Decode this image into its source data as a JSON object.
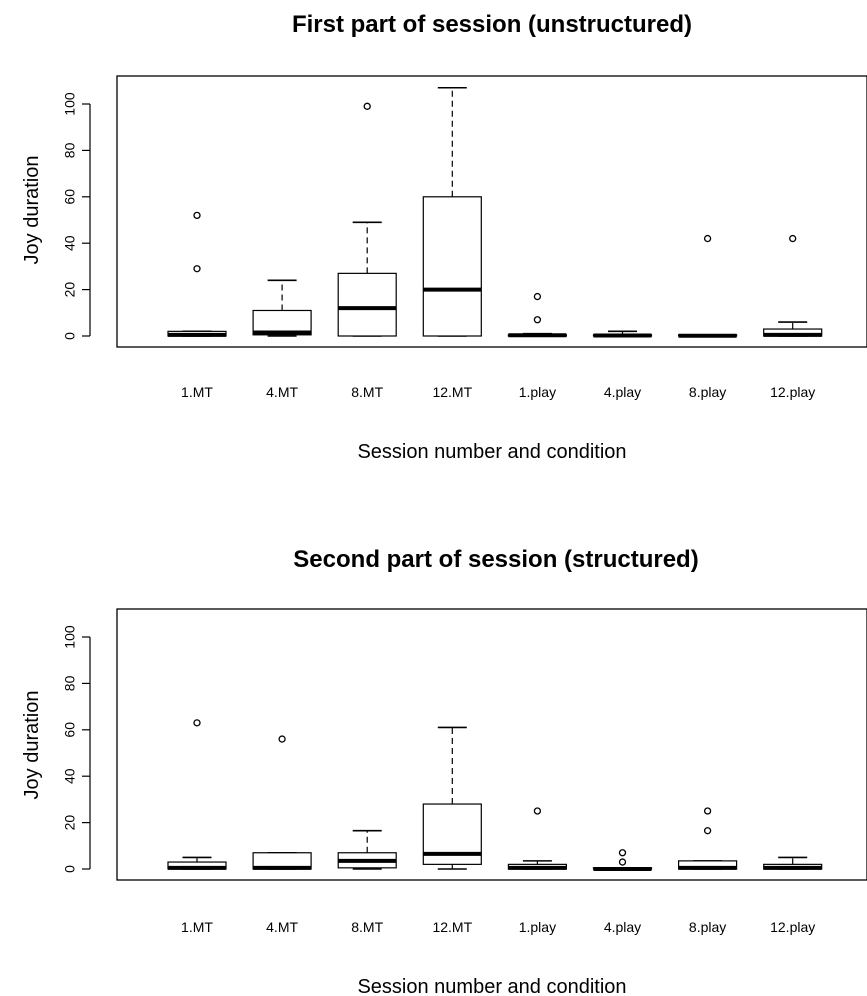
{
  "chart_data": [
    {
      "type": "boxplot",
      "title": "First part of session (unstructured)",
      "xlabel": "Session number and condition",
      "ylabel": "Joy duration",
      "ylim": [
        0,
        105
      ],
      "yticks": [
        0,
        20,
        40,
        60,
        80,
        100
      ],
      "grid": false,
      "categories": [
        "1.MT",
        "4.MT",
        "8.MT",
        "12.MT",
        "1.play",
        "4.play",
        "8.play",
        "12.play"
      ],
      "boxes": [
        {
          "whisker_low": 0,
          "q1": 0,
          "median": 0.5,
          "q3": 2,
          "whisker_high": 2,
          "outliers": [
            29,
            52
          ]
        },
        {
          "whisker_low": 0,
          "q1": 0.5,
          "median": 1.5,
          "q3": 11,
          "whisker_high": 24,
          "outliers": []
        },
        {
          "whisker_low": 0,
          "q1": 0,
          "median": 12,
          "q3": 27,
          "whisker_high": 49,
          "outliers": [
            99
          ]
        },
        {
          "whisker_low": 0,
          "q1": 0,
          "median": 20,
          "q3": 60,
          "whisker_high": 107,
          "outliers": []
        },
        {
          "whisker_low": 0,
          "q1": 0,
          "median": 0.3,
          "q3": 0.5,
          "whisker_high": 1,
          "outliers": [
            7,
            17
          ]
        },
        {
          "whisker_low": 0,
          "q1": 0,
          "median": 0.2,
          "q3": 0.5,
          "whisker_high": 2,
          "outliers": []
        },
        {
          "whisker_low": 0,
          "q1": 0,
          "median": 0.1,
          "q3": 0.5,
          "whisker_high": 0.5,
          "outliers": [
            42
          ]
        },
        {
          "whisker_low": 0,
          "q1": 0,
          "median": 0.5,
          "q3": 3,
          "whisker_high": 6,
          "outliers": [
            42
          ]
        }
      ]
    },
    {
      "type": "boxplot",
      "title": "Second part of session (structured)",
      "xlabel": "Session number and condition",
      "ylabel": "Joy duration",
      "ylim": [
        0,
        105
      ],
      "yticks": [
        0,
        20,
        40,
        60,
        80,
        100
      ],
      "grid": false,
      "categories": [
        "1.MT",
        "4.MT",
        "8.MT",
        "12.MT",
        "1.play",
        "4.play",
        "8.play",
        "12.play"
      ],
      "boxes": [
        {
          "whisker_low": 0,
          "q1": 0,
          "median": 0.5,
          "q3": 3,
          "whisker_high": 5,
          "outliers": [
            63
          ]
        },
        {
          "whisker_low": 0,
          "q1": 0,
          "median": 0.5,
          "q3": 7,
          "whisker_high": 7,
          "outliers": [
            56
          ]
        },
        {
          "whisker_low": 0,
          "q1": 0.5,
          "median": 3.5,
          "q3": 7,
          "whisker_high": 16.5,
          "outliers": []
        },
        {
          "whisker_low": 0,
          "q1": 2,
          "median": 6.5,
          "q3": 28,
          "whisker_high": 61,
          "outliers": []
        },
        {
          "whisker_low": 0,
          "q1": 0,
          "median": 0.5,
          "q3": 2,
          "whisker_high": 3.5,
          "outliers": [
            25
          ]
        },
        {
          "whisker_low": 0,
          "q1": 0,
          "median": 0,
          "q3": 0.5,
          "whisker_high": 0.5,
          "outliers": [
            3,
            7
          ]
        },
        {
          "whisker_low": 0,
          "q1": 0,
          "median": 0.5,
          "q3": 3.5,
          "whisker_high": 3.5,
          "outliers": [
            16.5,
            25
          ]
        },
        {
          "whisker_low": 0,
          "q1": 0,
          "median": 0.5,
          "q3": 2,
          "whisker_high": 5,
          "outliers": []
        }
      ]
    }
  ]
}
